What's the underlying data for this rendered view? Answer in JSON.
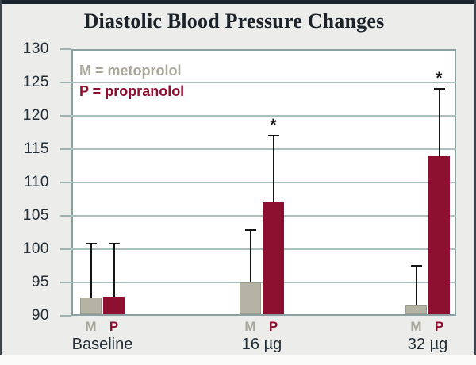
{
  "figure_title": "Diastolic Blood Pressure Changes",
  "chart_data": {
    "type": "bar",
    "title": "Diastolic Blood Pressure Changes",
    "categories": [
      "Baseline",
      "16 µg",
      "32 µg"
    ],
    "series": [
      {
        "name": "M",
        "drug": "metoprolol",
        "bar_color": "#b5b3a3",
        "label_color": "#a8a698",
        "values": [
          92.7,
          95.0,
          91.5
        ],
        "error_upper": [
          100.8,
          102.8,
          97.5
        ],
        "significant": [
          false,
          false,
          false
        ]
      },
      {
        "name": "P",
        "drug": "propranolol",
        "bar_color": "#8d1031",
        "label_color": "#8d1031",
        "values": [
          92.8,
          107.0,
          114.0
        ],
        "error_upper": [
          100.8,
          117.0,
          124.0
        ],
        "significant": [
          false,
          true,
          true
        ]
      }
    ],
    "xlabel": "",
    "ylabel": "",
    "ylim": [
      90,
      130
    ],
    "ytick_step": 5,
    "ytick_labels": [
      "90",
      "95",
      "100",
      "105",
      "110",
      "115",
      "120",
      "125",
      "130"
    ],
    "grid": true,
    "legend": [
      "M = metoprolol",
      "P = propranolol"
    ],
    "legend_position": "top-left",
    "significance_marker": "*"
  },
  "colors": {
    "page_background": "#ecedeb",
    "plot_background": "#ffffff",
    "plot_border": "#8ba19f",
    "gridline": "#abc0be",
    "top_bar": "#1a242e",
    "axis_text": "#232e37",
    "title_text": "#1b222a",
    "error_bar": "#151515",
    "metoprolol": "#b5b3a3",
    "propranolol": "#8d1031"
  }
}
